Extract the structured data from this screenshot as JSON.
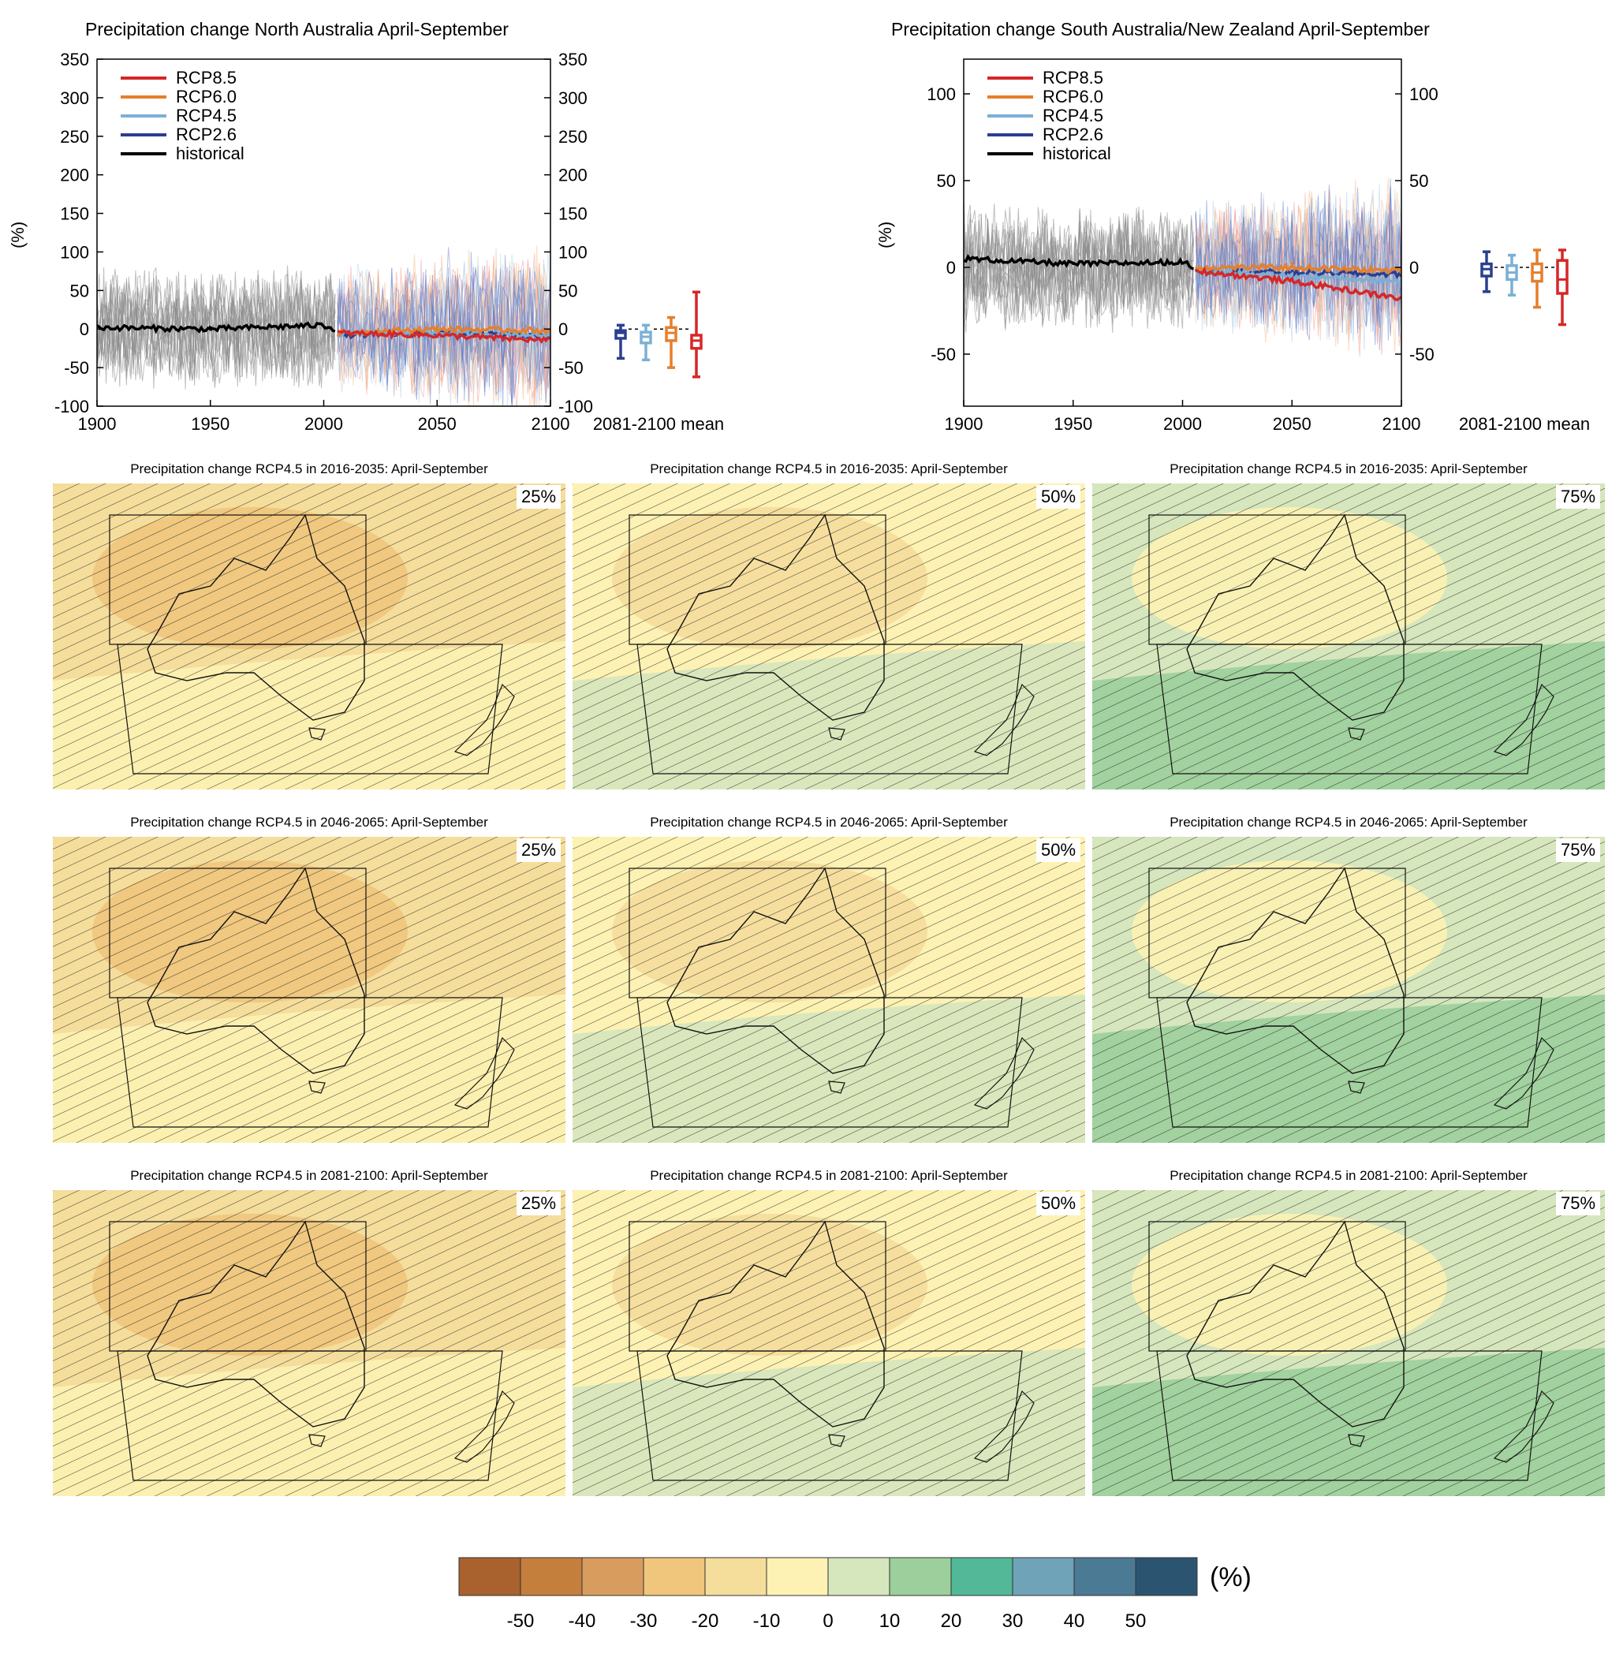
{
  "chart_data": [
    {
      "type": "line",
      "title": "Precipitation change North Australia April-September",
      "ylabel": "(%)",
      "xlim": [
        1900,
        2100
      ],
      "ylim": [
        -100,
        350
      ],
      "x_ticks": [
        "1900",
        "1950",
        "2000",
        "2050",
        "2100"
      ],
      "y_ticks": [
        "350",
        "300",
        "250",
        "200",
        "150",
        "100",
        "50",
        "0",
        "-50",
        "-100"
      ],
      "legend": [
        "RCP8.5",
        "RCP6.0",
        "RCP4.5",
        "RCP2.6",
        "historical"
      ],
      "legend_placement": "top-left",
      "series": [
        {
          "name": "historical",
          "color": "#000000",
          "x": [
            1900,
            1950,
            2000,
            2005
          ],
          "y": [
            2,
            0,
            5,
            0
          ]
        },
        {
          "name": "RCP2.6",
          "color": "#2a3f8f",
          "x": [
            2006,
            2050,
            2100
          ],
          "y": [
            -8,
            -5,
            -10
          ]
        },
        {
          "name": "RCP4.5",
          "color": "#7ab0d4",
          "x": [
            2006,
            2050,
            2100
          ],
          "y": [
            -5,
            -5,
            -8
          ]
        },
        {
          "name": "RCP6.0",
          "color": "#e57f2c",
          "x": [
            2006,
            2050,
            2100
          ],
          "y": [
            -5,
            0,
            -2
          ]
        },
        {
          "name": "RCP8.5",
          "color": "#d62728",
          "x": [
            2006,
            2050,
            2100
          ],
          "y": [
            -5,
            -8,
            -15
          ]
        }
      ],
      "box_label": "2081-2100 mean",
      "boxes": [
        {
          "name": "RCP2.6",
          "color": "#2a3f8f",
          "min": -38,
          "q1": -12,
          "median": -5,
          "q3": -2,
          "max": 5
        },
        {
          "name": "RCP4.5",
          "color": "#7ab0d4",
          "min": -40,
          "q1": -18,
          "median": -10,
          "q3": -4,
          "max": 5
        },
        {
          "name": "RCP6.0",
          "color": "#e57f2c",
          "min": -50,
          "q1": -15,
          "median": -5,
          "q3": 2,
          "max": 15
        },
        {
          "name": "RCP8.5",
          "color": "#d62728",
          "min": -62,
          "q1": -25,
          "median": -15,
          "q3": -8,
          "max": 48
        }
      ]
    },
    {
      "type": "line",
      "title": "Precipitation change South Australia/New Zealand April-September",
      "ylabel": "(%)",
      "xlim": [
        1900,
        2100
      ],
      "ylim": [
        -80,
        120
      ],
      "x_ticks": [
        "1900",
        "1950",
        "2000",
        "2050",
        "2100"
      ],
      "y_ticks": [
        "100",
        "50",
        "0",
        "-50"
      ],
      "legend": [
        "RCP8.5",
        "RCP6.0",
        "RCP4.5",
        "RCP2.6",
        "historical"
      ],
      "legend_placement": "top-left",
      "series": [
        {
          "name": "historical",
          "color": "#000000",
          "x": [
            1900,
            1950,
            2000,
            2005
          ],
          "y": [
            5,
            2,
            3,
            0
          ]
        },
        {
          "name": "RCP2.6",
          "color": "#2a3f8f",
          "x": [
            2006,
            2050,
            2100
          ],
          "y": [
            -2,
            -3,
            -4
          ]
        },
        {
          "name": "RCP4.5",
          "color": "#7ab0d4",
          "x": [
            2006,
            2050,
            2100
          ],
          "y": [
            -2,
            -5,
            -8
          ]
        },
        {
          "name": "RCP6.0",
          "color": "#e57f2c",
          "x": [
            2006,
            2050,
            2100
          ],
          "y": [
            0,
            0,
            -2
          ]
        },
        {
          "name": "RCP8.5",
          "color": "#d62728",
          "x": [
            2006,
            2050,
            2100
          ],
          "y": [
            -2,
            -8,
            -18
          ]
        }
      ],
      "box_label": "2081-2100 mean",
      "boxes": [
        {
          "name": "RCP2.6",
          "color": "#2a3f8f",
          "min": -14,
          "q1": -5,
          "median": -1,
          "q3": 2,
          "max": 9
        },
        {
          "name": "RCP4.5",
          "color": "#7ab0d4",
          "min": -16,
          "q1": -7,
          "median": -3,
          "q3": 1,
          "max": 7
        },
        {
          "name": "RCP6.0",
          "color": "#e57f2c",
          "min": -23,
          "q1": -8,
          "median": -3,
          "q3": 2,
          "max": 10
        },
        {
          "name": "RCP8.5",
          "color": "#d62728",
          "min": -33,
          "q1": -15,
          "median": -7,
          "q3": 4,
          "max": 10
        }
      ]
    },
    {
      "type": "heatmap",
      "maps": [
        {
          "title": "Precipitation change RCP4.5 in 2016-2035: April-September",
          "percentile": "25%"
        },
        {
          "title": "Precipitation change RCP4.5 in 2016-2035: April-September",
          "percentile": "50%"
        },
        {
          "title": "Precipitation change RCP4.5 in 2016-2035: April-September",
          "percentile": "75%"
        },
        {
          "title": "Precipitation change RCP4.5 in 2046-2065: April-September",
          "percentile": "25%"
        },
        {
          "title": "Precipitation change RCP4.5 in 2046-2065: April-September",
          "percentile": "50%"
        },
        {
          "title": "Precipitation change RCP4.5 in 2046-2065: April-September",
          "percentile": "75%"
        },
        {
          "title": "Precipitation change RCP4.5 in 2081-2100: April-September",
          "percentile": "25%"
        },
        {
          "title": "Precipitation change RCP4.5 in 2081-2100: April-September",
          "percentile": "50%"
        },
        {
          "title": "Precipitation change RCP4.5 in 2081-2100: April-September",
          "percentile": "75%"
        }
      ],
      "colorbar": {
        "unit": "(%)",
        "labels": [
          "-50",
          "-40",
          "-30",
          "-20",
          "-10",
          "0",
          "10",
          "20",
          "30",
          "40",
          "50"
        ],
        "colors": [
          "#a9622d",
          "#c47f3d",
          "#d99c5f",
          "#f0c57c",
          "#f5dd9b",
          "#fdf2b3",
          "#d6e6bd",
          "#9ccf9b",
          "#52b898",
          "#6fa3b8",
          "#4b7a94",
          "#2b5470"
        ]
      }
    }
  ]
}
